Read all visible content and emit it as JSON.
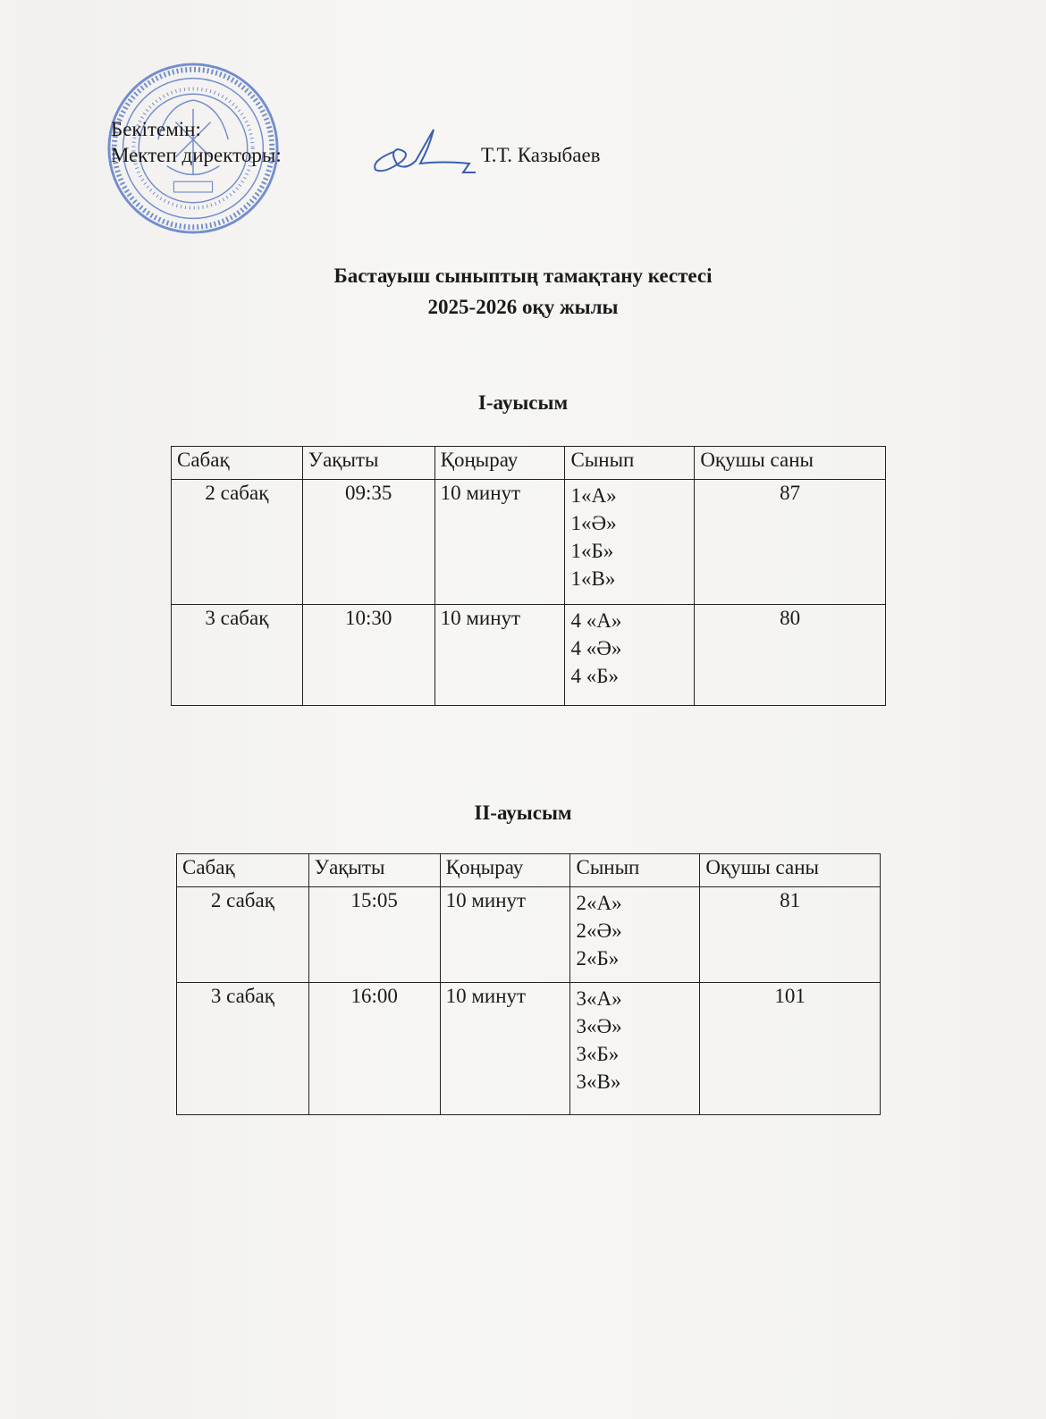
{
  "approval": {
    "approve_label": "Бекітемін:",
    "position_label": "Мектеп директоры:",
    "director_name": "Т.Т. Казыбаев"
  },
  "stamp": {
    "text": "ҚАЗАҚСТАН",
    "color": "#3a5fb0"
  },
  "signature_color": "#3a5fb0",
  "document": {
    "title": "Бастауыш сыныптың тамақтану кестесі",
    "subtitle": "2025-2026 оқу жылы"
  },
  "shifts": [
    {
      "heading": "I-ауысым",
      "columns": [
        "Сабақ",
        "Уақыты",
        "Қоңырау",
        "Сынып",
        "Оқушы саны"
      ],
      "rows": [
        {
          "lesson": "2 сабақ",
          "time": "09:35",
          "break": "10 минут",
          "classes": [
            "1«А»",
            "1«Ә»",
            "1«Б»",
            "1«В»"
          ],
          "students": "87"
        },
        {
          "lesson": "3 сабақ",
          "time": "10:30",
          "break": "10 минут",
          "classes": [
            "4 «А»",
            "4 «Ә»",
            "4 «Б»"
          ],
          "students": "80"
        }
      ]
    },
    {
      "heading": "II-ауысым",
      "columns": [
        "Сабақ",
        "Уақыты",
        "Қоңырау",
        "Сынып",
        "Оқушы саны"
      ],
      "rows": [
        {
          "lesson": "2 сабақ",
          "time": "15:05",
          "break": "10 минут",
          "classes": [
            "2«А»",
            "2«Ә»",
            "2«Б»"
          ],
          "students": "81"
        },
        {
          "lesson": "3 сабақ",
          "time": "16:00",
          "break": "10 минут",
          "classes": [
            "3«А»",
            "3«Ә»",
            "3«Б»",
            "3«В»"
          ],
          "students": "101"
        }
      ]
    }
  ]
}
